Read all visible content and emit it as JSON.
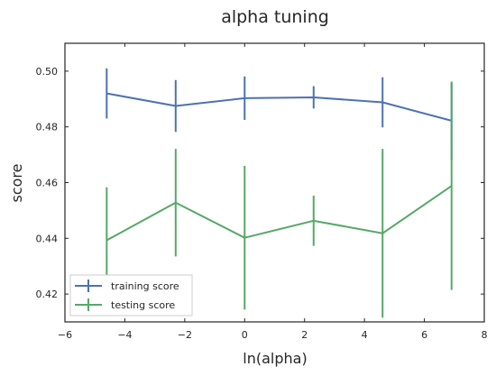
{
  "chart_data": {
    "type": "line",
    "title": "alpha tuning",
    "xlabel": "ln(alpha)",
    "ylabel": "score",
    "xlim": [
      -6,
      8
    ],
    "ylim": [
      0.41,
      0.51
    ],
    "xticks": [
      -6,
      -4,
      -2,
      0,
      2,
      4,
      6,
      8
    ],
    "yticks": [
      0.42,
      0.44,
      0.46,
      0.48,
      0.5
    ],
    "grid": false,
    "legend_position": "lower-left",
    "x": [
      -4.605,
      -2.303,
      0.0,
      2.303,
      4.605,
      6.908
    ],
    "series": [
      {
        "name": "training score",
        "color": "#4c72b0",
        "values": [
          0.492,
          0.4875,
          0.4903,
          0.4906,
          0.4888,
          0.4822
        ],
        "errors": [
          0.009,
          0.0093,
          0.0078,
          0.004,
          0.009,
          0.014
        ]
      },
      {
        "name": "testing score",
        "color": "#55a868",
        "values": [
          0.4393,
          0.4528,
          0.4402,
          0.4463,
          0.4418,
          0.4588
        ],
        "errors": [
          0.019,
          0.0193,
          0.0258,
          0.009,
          0.0303,
          0.0373
        ]
      }
    ]
  }
}
